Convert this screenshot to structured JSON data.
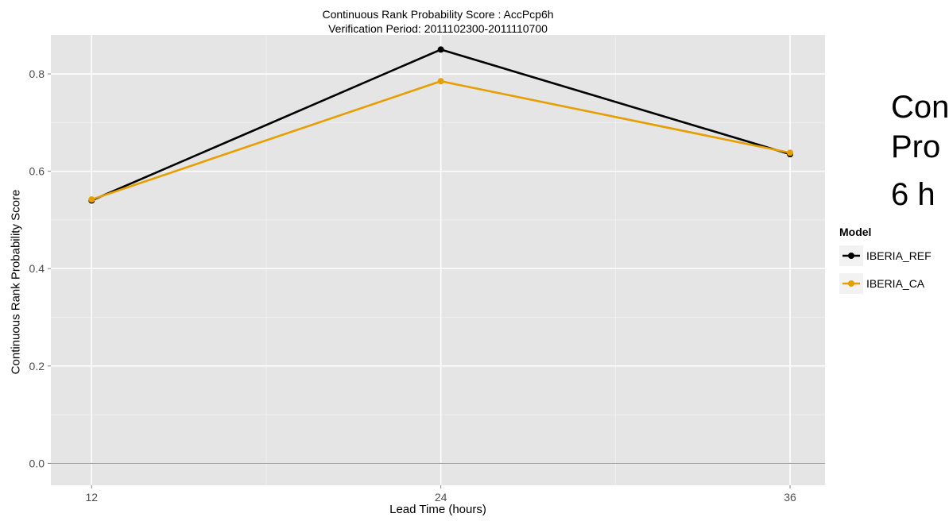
{
  "chart_data": {
    "type": "line",
    "title": "Continuous Rank Probability Score : AccPcp6h",
    "subtitle": "Verification Period: 2011102300-2011110700",
    "xlabel": "Lead Time (hours)",
    "ylabel": "Continuous Rank Probability Score",
    "x": [
      12,
      24,
      36
    ],
    "x_tick_labels": [
      "12",
      "24",
      "36"
    ],
    "y_ticks": [
      0.0,
      0.2,
      0.4,
      0.6,
      0.8
    ],
    "y_tick_labels": [
      "0.0",
      "0.2",
      "0.4",
      "0.6",
      "0.8"
    ],
    "xlim": [
      10.6,
      37.2
    ],
    "ylim": [
      -0.045,
      0.88
    ],
    "grid": true,
    "legend_title": "Model",
    "legend_position": "right",
    "series": [
      {
        "name": "IBERIA_REF",
        "color": "#000000",
        "values": [
          0.54,
          0.85,
          0.635
        ]
      },
      {
        "name": "IBERIA_CA",
        "color": "#e69f00",
        "values": [
          0.542,
          0.785,
          0.638
        ]
      }
    ]
  },
  "side_text": [
    "Con",
    "Pro",
    "6 h"
  ]
}
